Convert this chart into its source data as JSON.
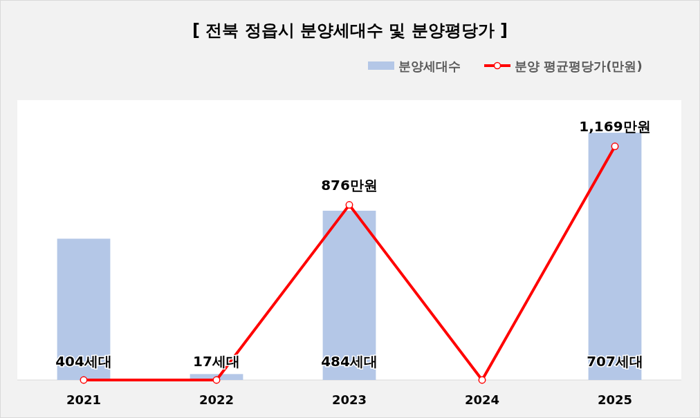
{
  "chart_data": {
    "type": "bar",
    "title": "[ 전북 정읍시 분양세대수 및 분양평당가 ]",
    "categories": [
      "2021",
      "2022",
      "2023",
      "2024",
      "2025"
    ],
    "series": [
      {
        "name": "분양세대수",
        "color": "#b4c7e7",
        "values": [
          404,
          17,
          484,
          null,
          707
        ],
        "value_labels": [
          "404세대",
          "17세대",
          "484세대",
          null,
          "707세대"
        ]
      },
      {
        "type": "line",
        "name": "분양 평균평당가(만원)",
        "color": "#ff0000",
        "axis": "y2",
        "marker": "circle",
        "values": [
          0,
          0,
          876,
          0,
          1169
        ],
        "value_labels": [
          null,
          null,
          "876만원",
          null,
          "1,169만원"
        ]
      }
    ],
    "ylim": [
      0,
      800
    ],
    "y2lim": [
      0,
      1400
    ],
    "tick_labels": "x",
    "legend": "top right"
  }
}
